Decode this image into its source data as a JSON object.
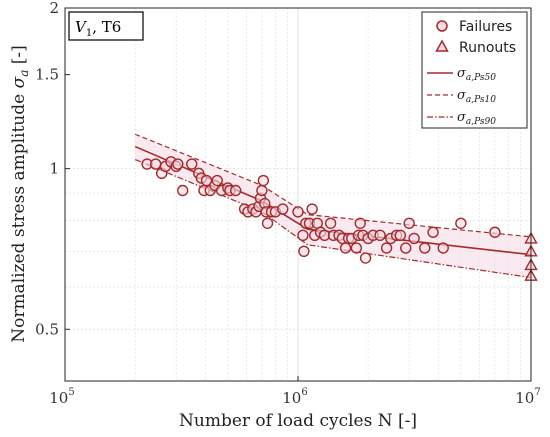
{
  "chart_data": {
    "type": "scatter",
    "ylabel_text": "Normalized stress amplitude ",
    "ylabel_symbol": "σ",
    "ylabel_sub": "a",
    "ylabel_unit": " [-]",
    "xlabel": "Number of load cycles N [-]",
    "annotation_main": "V",
    "annotation_sub": "1",
    "annotation_rest": ", T6",
    "x_scale": "log",
    "y_scale": "log",
    "xlim": [
      100000,
      10000000
    ],
    "ylim": [
      0.4,
      2
    ],
    "x_tick_bases": [
      "10",
      "10",
      "10"
    ],
    "x_tick_exps": [
      "5",
      "6",
      "7"
    ],
    "x_tick_values": [
      100000,
      1000000,
      10000000
    ],
    "y_ticks": [
      "0.5",
      "1",
      "1.5",
      "2"
    ],
    "y_tick_values": [
      0.5,
      1,
      1.5,
      2
    ],
    "grid": true,
    "legend_position": "top-right",
    "colors": {
      "series": "#A52A2A",
      "band": "#F3D9E4",
      "grid": "#DDDDDD"
    },
    "legend": [
      {
        "label": "Failures",
        "kind": "circle"
      },
      {
        "label": "Runouts",
        "kind": "triangle"
      },
      {
        "label": "σ",
        "sub": "a,Ps50",
        "kind": "solid"
      },
      {
        "label": "σ",
        "sub": "a,Ps10",
        "kind": "dashed"
      },
      {
        "label": "σ",
        "sub": "a,Ps90",
        "kind": "dashdot"
      }
    ],
    "series": [
      {
        "name": "Failures",
        "type": "scatter",
        "marker": "circle",
        "points": [
          [
            225000,
            1.02
          ],
          [
            245000,
            1.02
          ],
          [
            260000,
            0.98
          ],
          [
            270000,
            1.01
          ],
          [
            285000,
            1.03
          ],
          [
            300000,
            1.01
          ],
          [
            305000,
            1.02
          ],
          [
            320000,
            0.91
          ],
          [
            350000,
            1.02
          ],
          [
            375000,
            0.98
          ],
          [
            385000,
            0.96
          ],
          [
            395000,
            0.91
          ],
          [
            405000,
            0.95
          ],
          [
            420000,
            0.91
          ],
          [
            440000,
            0.93
          ],
          [
            450000,
            0.95
          ],
          [
            470000,
            0.91
          ],
          [
            500000,
            0.92
          ],
          [
            510000,
            0.91
          ],
          [
            540000,
            0.91
          ],
          [
            590000,
            0.84
          ],
          [
            610000,
            0.83
          ],
          [
            640000,
            0.84
          ],
          [
            660000,
            0.83
          ],
          [
            680000,
            0.85
          ],
          [
            690000,
            0.88
          ],
          [
            700000,
            0.91
          ],
          [
            710000,
            0.95
          ],
          [
            720000,
            0.86
          ],
          [
            730000,
            0.83
          ],
          [
            740000,
            0.79
          ],
          [
            770000,
            0.83
          ],
          [
            800000,
            0.83
          ],
          [
            860000,
            0.84
          ],
          [
            1000000,
            0.83
          ],
          [
            1050000,
            0.75
          ],
          [
            1060000,
            0.7
          ],
          [
            1080000,
            0.79
          ],
          [
            1120000,
            0.79
          ],
          [
            1150000,
            0.84
          ],
          [
            1180000,
            0.75
          ],
          [
            1210000,
            0.79
          ],
          [
            1250000,
            0.76
          ],
          [
            1300000,
            0.75
          ],
          [
            1380000,
            0.79
          ],
          [
            1420000,
            0.75
          ],
          [
            1500000,
            0.75
          ],
          [
            1550000,
            0.74
          ],
          [
            1600000,
            0.71
          ],
          [
            1650000,
            0.74
          ],
          [
            1700000,
            0.74
          ],
          [
            1780000,
            0.71
          ],
          [
            1820000,
            0.75
          ],
          [
            1850000,
            0.79
          ],
          [
            1900000,
            0.75
          ],
          [
            1950000,
            0.68
          ],
          [
            2000000,
            0.74
          ],
          [
            2100000,
            0.75
          ],
          [
            2250000,
            0.75
          ],
          [
            2400000,
            0.71
          ],
          [
            2500000,
            0.74
          ],
          [
            2650000,
            0.75
          ],
          [
            2750000,
            0.75
          ],
          [
            2900000,
            0.71
          ],
          [
            3000000,
            0.79
          ],
          [
            3150000,
            0.74
          ],
          [
            3500000,
            0.71
          ],
          [
            3800000,
            0.76
          ],
          [
            4200000,
            0.71
          ],
          [
            5000000,
            0.79
          ],
          [
            7000000,
            0.76
          ]
        ]
      },
      {
        "name": "Runouts",
        "type": "scatter",
        "marker": "triangle",
        "points": [
          [
            10000000,
            0.74
          ],
          [
            10000000,
            0.7
          ],
          [
            10000000,
            0.66
          ],
          [
            10000000,
            0.63
          ]
        ]
      },
      {
        "name": "σa,Ps50",
        "type": "line",
        "style": "solid",
        "points": [
          [
            200000,
            1.1
          ],
          [
            700000,
            0.87
          ],
          [
            1100000,
            0.77
          ],
          [
            10000000,
            0.69
          ]
        ]
      },
      {
        "name": "σa,Ps10",
        "type": "line",
        "style": "dashed",
        "points": [
          [
            200000,
            1.16
          ],
          [
            700000,
            0.93
          ],
          [
            1100000,
            0.82
          ],
          [
            10000000,
            0.745
          ]
        ]
      },
      {
        "name": "σa,Ps90",
        "type": "line",
        "style": "dashdot",
        "points": [
          [
            200000,
            1.04
          ],
          [
            700000,
            0.83
          ],
          [
            1100000,
            0.72
          ],
          [
            10000000,
            0.625
          ]
        ]
      }
    ]
  }
}
